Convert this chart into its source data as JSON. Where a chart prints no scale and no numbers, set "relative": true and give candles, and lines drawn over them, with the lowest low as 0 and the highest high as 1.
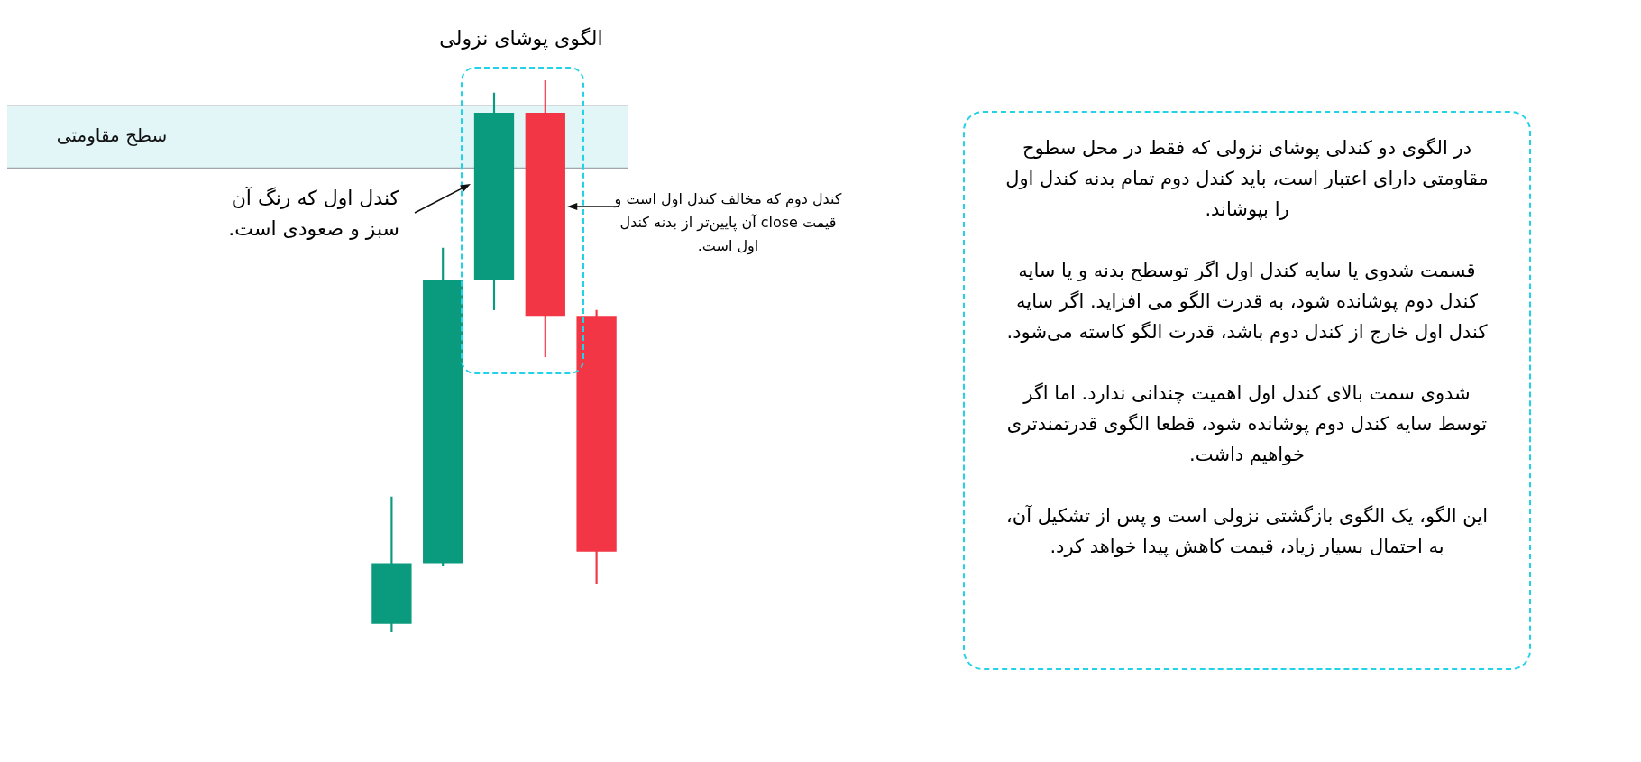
{
  "chart_data": {
    "type": "candlestick",
    "relative": true,
    "categories": [
      null,
      null,
      null,
      null,
      null
    ],
    "ohlc": [
      [
        0.015,
        0.245,
        0,
        0.125
      ],
      [
        0.125,
        0.696,
        0.12,
        0.639
      ],
      [
        0.639,
        0.977,
        0.584,
        0.941
      ],
      [
        0.941,
        1,
        0.499,
        0.573
      ],
      [
        0.573,
        0.583,
        0.087,
        0.146
      ]
    ],
    "colors": [
      "#0a9a7d",
      "#0a9a7d",
      "#0a9a7d",
      "#f23645",
      "#f23645"
    ],
    "bands": [
      {
        "axis": "y",
        "from": 0.841,
        "to": 0.954,
        "label": "سطح مقاومتی",
        "color": "#e2f6f8"
      }
    ],
    "ref_lines": [
      {
        "axis": "y",
        "value": 0.954,
        "color": "#8a8f9a"
      },
      {
        "axis": "y",
        "value": 0.841,
        "color": "#8a8f9a"
      }
    ],
    "annotations": [
      "الگوی پوشای نزولی",
      "کندل اول که رنگ آن سبز و صعودی است.",
      "کندل دوم که مخالف کندل اول است و قیمت close آن پایین‌تر از بدنه کندل اول است.",
      "در الگوی دو کندلی پوشای نزولی که فقط در محل سطوح مقاومتی دارای اعتبار است، باید کندل دوم تمام بدنه کندل اول را بپوشاند.",
      "قسمت شدوی یا سایه کندل اول اگر توسطح بدنه و یا سایه کندل دوم پوشانده شود، به قدرت الگو می افزاید. اگر سایه کندل اول خارج از کندل دوم باشد، قدرت الگو کاسته می‌شود.",
      "شدوی سمت بالای کندل اول اهمیت چندانی ندارد. اما اگر توسط سایه کندل دوم پوشانده شود، قطعا الگوی قدرتمندتری خواهیم داشت.",
      "این الگو، یک الگوی بازگشتی نزولی است و پس از تشکیل آن، به احتمال بسیار زیاد، قیمت کاهش پیدا خواهد کرد."
    ]
  }
}
